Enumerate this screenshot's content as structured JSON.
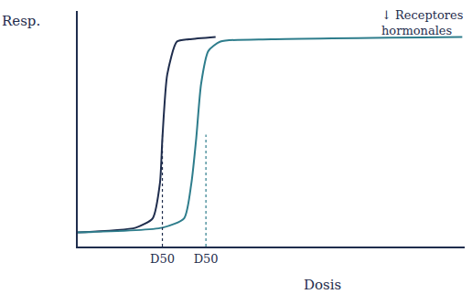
{
  "chart_data": {
    "type": "line",
    "xlabel": "Dosis",
    "ylabel": "Resp.",
    "annotation": "↓ Receptores hormonales",
    "xlim": [
      0,
      16
    ],
    "ylim": [
      0,
      10
    ],
    "xticks": [
      {
        "value": 3.5,
        "label": "D50"
      },
      {
        "value": 5.3,
        "label": "D50"
      }
    ],
    "tick_labels": "x",
    "grid": false,
    "series": [
      {
        "color": "#1f2d4d",
        "x": [
          0,
          2.4,
          3.1,
          3.4,
          3.5,
          3.7,
          4.1,
          4.6,
          5.7
        ],
        "values": [
          0.6,
          0.8,
          1.2,
          2.7,
          4.6,
          7.3,
          8.7,
          8.8,
          8.9
        ]
      },
      {
        "color": "#2e7d8c",
        "x": [
          0,
          3.5,
          4.4,
          4.7,
          4.9,
          5.1,
          5.4,
          5.9,
          8,
          15.9
        ],
        "values": [
          0.6,
          0.8,
          1.2,
          2.7,
          4.6,
          6.9,
          8.3,
          8.7,
          8.8,
          8.9
        ]
      }
    ]
  }
}
